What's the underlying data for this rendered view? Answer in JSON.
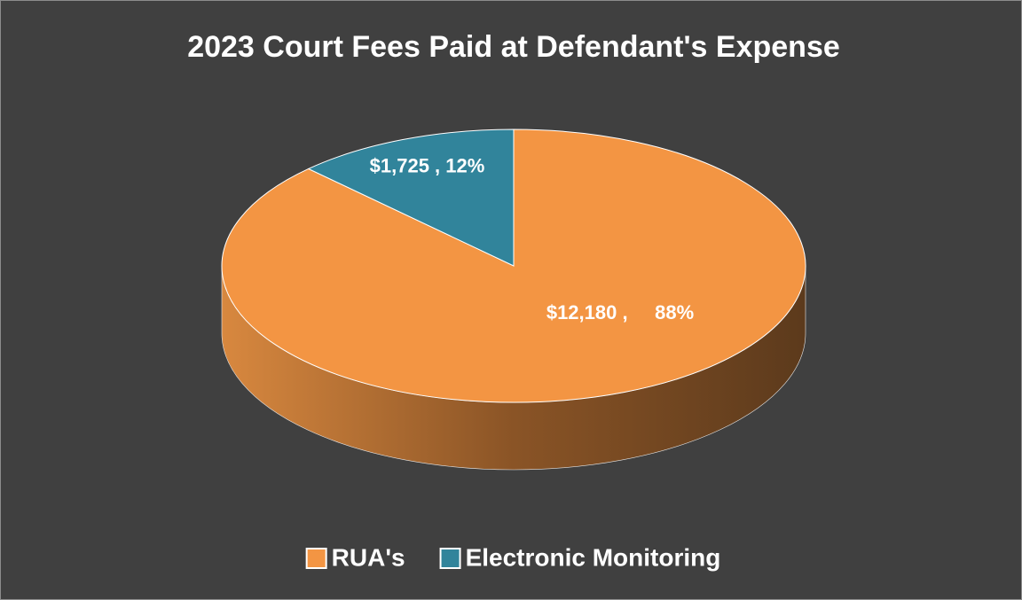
{
  "chart_data": {
    "type": "pie",
    "title": "2023 Court Fees Paid at Defendant's Expense",
    "categories": [
      "RUA's",
      "Electronic Monitoring"
    ],
    "values": [
      12180,
      1725
    ],
    "value_labels": [
      "$12,180 ,     88%",
      "$1,725 , 12%"
    ],
    "colors": [
      "#f39543",
      "#31849b"
    ],
    "legend": "bottom"
  }
}
